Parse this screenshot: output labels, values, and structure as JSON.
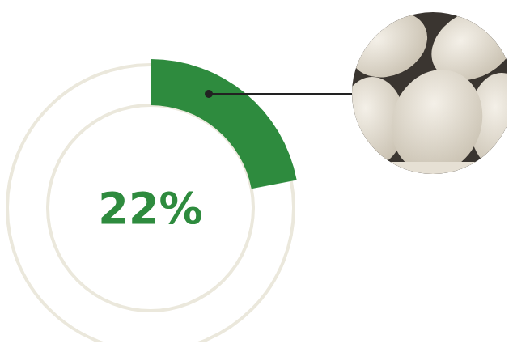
{
  "chart_data": {
    "type": "pie",
    "values": [
      22
    ],
    "value_labels": [
      "22%"
    ],
    "data_labels": true,
    "color": "#2e8b3e"
  }
}
